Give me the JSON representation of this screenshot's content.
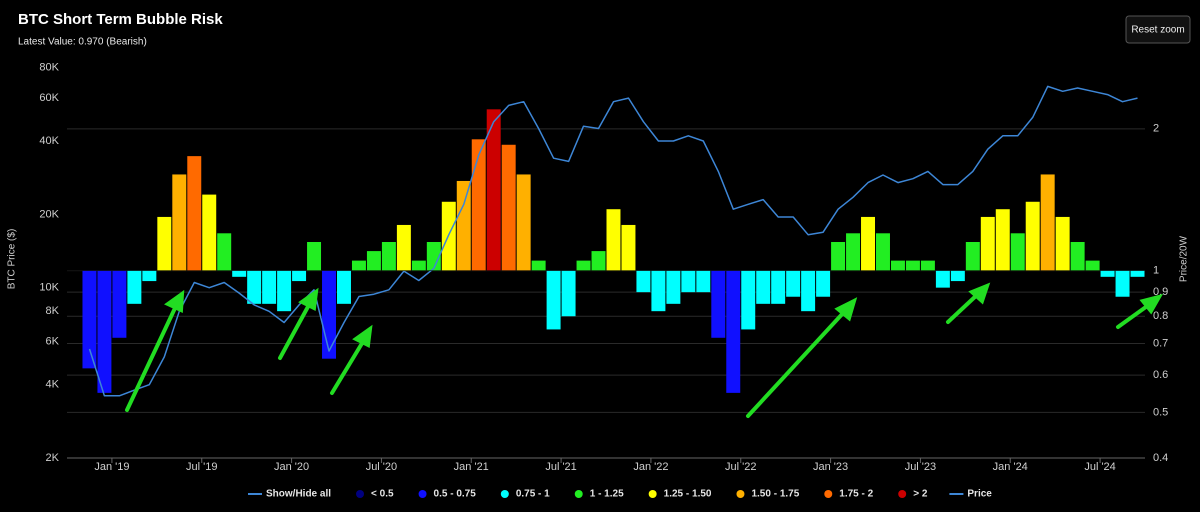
{
  "chart_data": {
    "type": "bar",
    "title": "BTC Short Term Bubble Risk",
    "subtitle": "Latest Value: 0.970 (Bearish)",
    "button": "Reset zoom",
    "y_label": "BTC Price ($)",
    "y2_label": "Price/20W",
    "legend_toggle": "Show/Hide all",
    "bar_baseline": 1,
    "xlim": [
      "2018-10",
      "2024-10"
    ],
    "xticks": [
      {
        "value": "2019-01",
        "label": "Jan '19"
      },
      {
        "value": "2019-07",
        "label": "Jul '19"
      },
      {
        "value": "2020-01",
        "label": "Jan '20"
      },
      {
        "value": "2020-07",
        "label": "Jul '20"
      },
      {
        "value": "2021-01",
        "label": "Jan '21"
      },
      {
        "value": "2021-07",
        "label": "Jul '21"
      },
      {
        "value": "2022-01",
        "label": "Jan '22"
      },
      {
        "value": "2022-07",
        "label": "Jul '22"
      },
      {
        "value": "2023-01",
        "label": "Jan '23"
      },
      {
        "value": "2023-07",
        "label": "Jul '23"
      },
      {
        "value": "2024-01",
        "label": "Jan '24"
      },
      {
        "value": "2024-07",
        "label": "Jul '24"
      }
    ],
    "ylim": [
      2000,
      86000
    ],
    "yticks": [
      {
        "value": 2000,
        "label": "2K"
      },
      {
        "value": 4000,
        "label": "4K"
      },
      {
        "value": 6000,
        "label": "6K"
      },
      {
        "value": 8000,
        "label": "8K"
      },
      {
        "value": 10000,
        "label": "10K"
      },
      {
        "value": 20000,
        "label": "20K"
      },
      {
        "value": 40000,
        "label": "40K"
      },
      {
        "value": 60000,
        "label": "60K"
      },
      {
        "value": 80000,
        "label": "80K"
      }
    ],
    "y_scale": "log",
    "y2lim": [
      0.4,
      2.8
    ],
    "y2ticks": [
      0.4,
      0.5,
      0.6,
      0.7,
      0.8,
      0.9,
      1,
      2
    ],
    "y2_scale": "log",
    "grid": true,
    "x": [
      "2018-11",
      "2018-12",
      "2019-01",
      "2019-02",
      "2019-03",
      "2019-04",
      "2019-05",
      "2019-06",
      "2019-07",
      "2019-08",
      "2019-09",
      "2019-10",
      "2019-11",
      "2019-12",
      "2020-01",
      "2020-02",
      "2020-03",
      "2020-04",
      "2020-05",
      "2020-06",
      "2020-07",
      "2020-08",
      "2020-09",
      "2020-10",
      "2020-11",
      "2020-12",
      "2021-01",
      "2021-02",
      "2021-03",
      "2021-04",
      "2021-05",
      "2021-06",
      "2021-07",
      "2021-08",
      "2021-09",
      "2021-10",
      "2021-11",
      "2021-12",
      "2022-01",
      "2022-02",
      "2022-03",
      "2022-04",
      "2022-05",
      "2022-06",
      "2022-07",
      "2022-08",
      "2022-09",
      "2022-10",
      "2022-11",
      "2022-12",
      "2023-01",
      "2023-02",
      "2023-03",
      "2023-04",
      "2023-05",
      "2023-06",
      "2023-07",
      "2023-08",
      "2023-09",
      "2023-10",
      "2023-11",
      "2023-12",
      "2024-01",
      "2024-02",
      "2024-03",
      "2024-04",
      "2024-05",
      "2024-06",
      "2024-07",
      "2024-08",
      "2024-09"
    ],
    "series": [
      {
        "name": "< 0.5",
        "color": "#000080",
        "axis": "y2",
        "type": "bar",
        "x": [],
        "values": []
      },
      {
        "name": "0.5 - 0.75",
        "color": "#1010ff",
        "axis": "y2",
        "type": "bar",
        "x": [
          "2018-11",
          "2018-12",
          "2019-01",
          "2020-03",
          "2022-05",
          "2022-06"
        ],
        "values": [
          0.62,
          0.55,
          0.72,
          0.65,
          0.72,
          0.55
        ]
      },
      {
        "name": "0.75 - 1",
        "color": "#00ffff",
        "axis": "y2",
        "type": "bar",
        "x": [
          "2019-02",
          "2019-03",
          "2019-09",
          "2019-10",
          "2019-11",
          "2019-12",
          "2020-01",
          "2020-04",
          "2021-06",
          "2021-07",
          "2021-12",
          "2022-01",
          "2022-02",
          "2022-03",
          "2022-04",
          "2022-07",
          "2022-08",
          "2022-09",
          "2022-10",
          "2022-11",
          "2022-12",
          "2023-08",
          "2023-09",
          "2024-07",
          "2024-08",
          "2024-09"
        ],
        "values": [
          0.85,
          0.95,
          0.97,
          0.85,
          0.85,
          0.82,
          0.95,
          0.85,
          0.75,
          0.8,
          0.9,
          0.82,
          0.85,
          0.9,
          0.9,
          0.75,
          0.85,
          0.85,
          0.88,
          0.82,
          0.88,
          0.92,
          0.95,
          0.97,
          0.88,
          0.97
        ]
      },
      {
        "name": "1 - 1.25",
        "color": "#22ee22",
        "axis": "y2",
        "type": "bar",
        "x": [
          "2019-08",
          "2020-02",
          "2020-05",
          "2020-06",
          "2020-07",
          "2020-09",
          "2020-10",
          "2021-05",
          "2021-08",
          "2021-09",
          "2023-01",
          "2023-02",
          "2023-04",
          "2023-05",
          "2023-06",
          "2023-07",
          "2023-10",
          "2024-01",
          "2024-05",
          "2024-06"
        ],
        "values": [
          1.2,
          1.15,
          1.05,
          1.1,
          1.15,
          1.05,
          1.15,
          1.05,
          1.05,
          1.1,
          1.15,
          1.2,
          1.2,
          1.05,
          1.05,
          1.05,
          1.15,
          1.2,
          1.15,
          1.05
        ]
      },
      {
        "name": "1.25 - 1.50",
        "color": "#ffff00",
        "axis": "y2",
        "type": "bar",
        "x": [
          "2019-04",
          "2019-07",
          "2020-08",
          "2020-11",
          "2021-10",
          "2021-11",
          "2023-03",
          "2023-11",
          "2023-12",
          "2024-02",
          "2024-04"
        ],
        "values": [
          1.3,
          1.45,
          1.25,
          1.4,
          1.35,
          1.25,
          1.3,
          1.3,
          1.35,
          1.4,
          1.3
        ]
      },
      {
        "name": "1.50 - 1.75",
        "color": "#ffb000",
        "axis": "y2",
        "type": "bar",
        "x": [
          "2019-05",
          "2020-12",
          "2021-04",
          "2024-03"
        ],
        "values": [
          1.6,
          1.55,
          1.6,
          1.6
        ]
      },
      {
        "name": "1.75 - 2",
        "color": "#ff6a00",
        "axis": "y2",
        "type": "bar",
        "x": [
          "2019-06",
          "2021-01",
          "2021-03"
        ],
        "values": [
          1.75,
          1.9,
          1.85
        ]
      },
      {
        "name": "> 2",
        "color": "#cc0000",
        "axis": "y2",
        "type": "bar",
        "x": [
          "2021-02"
        ],
        "values": [
          2.2
        ]
      },
      {
        "name": "Price",
        "color": "#3d86d6",
        "axis": "y",
        "type": "line",
        "values": [
          5600,
          3600,
          3600,
          3800,
          4000,
          5200,
          8000,
          10500,
          10000,
          10500,
          9500,
          8500,
          8000,
          7200,
          8500,
          9800,
          5500,
          7200,
          9200,
          9400,
          9800,
          11700,
          10700,
          12000,
          16500,
          22000,
          35000,
          48000,
          56000,
          58000,
          45000,
          34000,
          33000,
          46000,
          45000,
          58000,
          60000,
          48000,
          40000,
          40000,
          42000,
          40000,
          30000,
          21000,
          22000,
          23000,
          19500,
          19500,
          16500,
          16900,
          21000,
          23500,
          27000,
          29000,
          27000,
          28000,
          30000,
          26500,
          26500,
          30000,
          37000,
          42000,
          42000,
          50000,
          67000,
          64000,
          66000,
          64000,
          62000,
          58000,
          60000
        ]
      }
    ]
  }
}
